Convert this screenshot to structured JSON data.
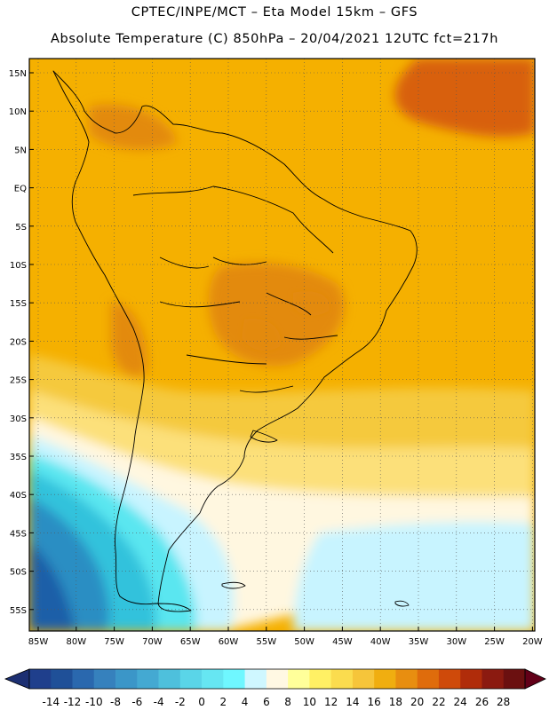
{
  "title": {
    "line1": "CPTEC/INPE/MCT –  Eta Model 15km – GFS",
    "line2": "Absolute Temperature (C) 850hPa – 20/04/2021 12UTC fct=217h"
  },
  "map": {
    "lat_labels": [
      "15N",
      "10N",
      "5N",
      "EQ",
      "5S",
      "10S",
      "15S",
      "20S",
      "25S",
      "30S",
      "35S",
      "40S",
      "45S",
      "50S",
      "55S"
    ],
    "lon_labels": [
      "85W",
      "80W",
      "75W",
      "70W",
      "65W",
      "60W",
      "55W",
      "50W",
      "45W",
      "40W",
      "35W",
      "30W",
      "25W",
      "20W"
    ],
    "field_colors": {
      "warm_orange": "#f5b000",
      "dark_orange": "#e38a10",
      "red_orange": "#d86008",
      "yellow": "#f5c93c",
      "light_yellow": "#fce07a",
      "cream": "#fff7e0",
      "pale_cyan": "#c8f4ff",
      "cyan": "#5ae6f0",
      "teal_blue": "#32c2dc",
      "blue": "#2a8ec3",
      "deep_blue": "#1d5fa8"
    }
  },
  "colorbar": {
    "labels": [
      "-14",
      "-12",
      "-10",
      "-8",
      "-6",
      "-4",
      "-2",
      "0",
      "2",
      "4",
      "6",
      "8",
      "10",
      "12",
      "14",
      "16",
      "18",
      "20",
      "22",
      "24",
      "26",
      "28"
    ],
    "colors": [
      "#1f3f8c",
      "#1f5098",
      "#2a68ae",
      "#3681bd",
      "#3b96c8",
      "#44a9d2",
      "#4ec0dc",
      "#5ad5e8",
      "#66e6f2",
      "#6ff7ff",
      "#cff7ff",
      "#fff8e3",
      "#ffff9a",
      "#fff064",
      "#fbdc4e",
      "#f6c53a",
      "#f0ae10",
      "#e88e10",
      "#df6c0c",
      "#cf4a0a",
      "#b02c0a",
      "#8b1a10",
      "#6b1010"
    ],
    "left_arrow_color": "#1c2f72",
    "right_arrow_color": "#620018"
  }
}
